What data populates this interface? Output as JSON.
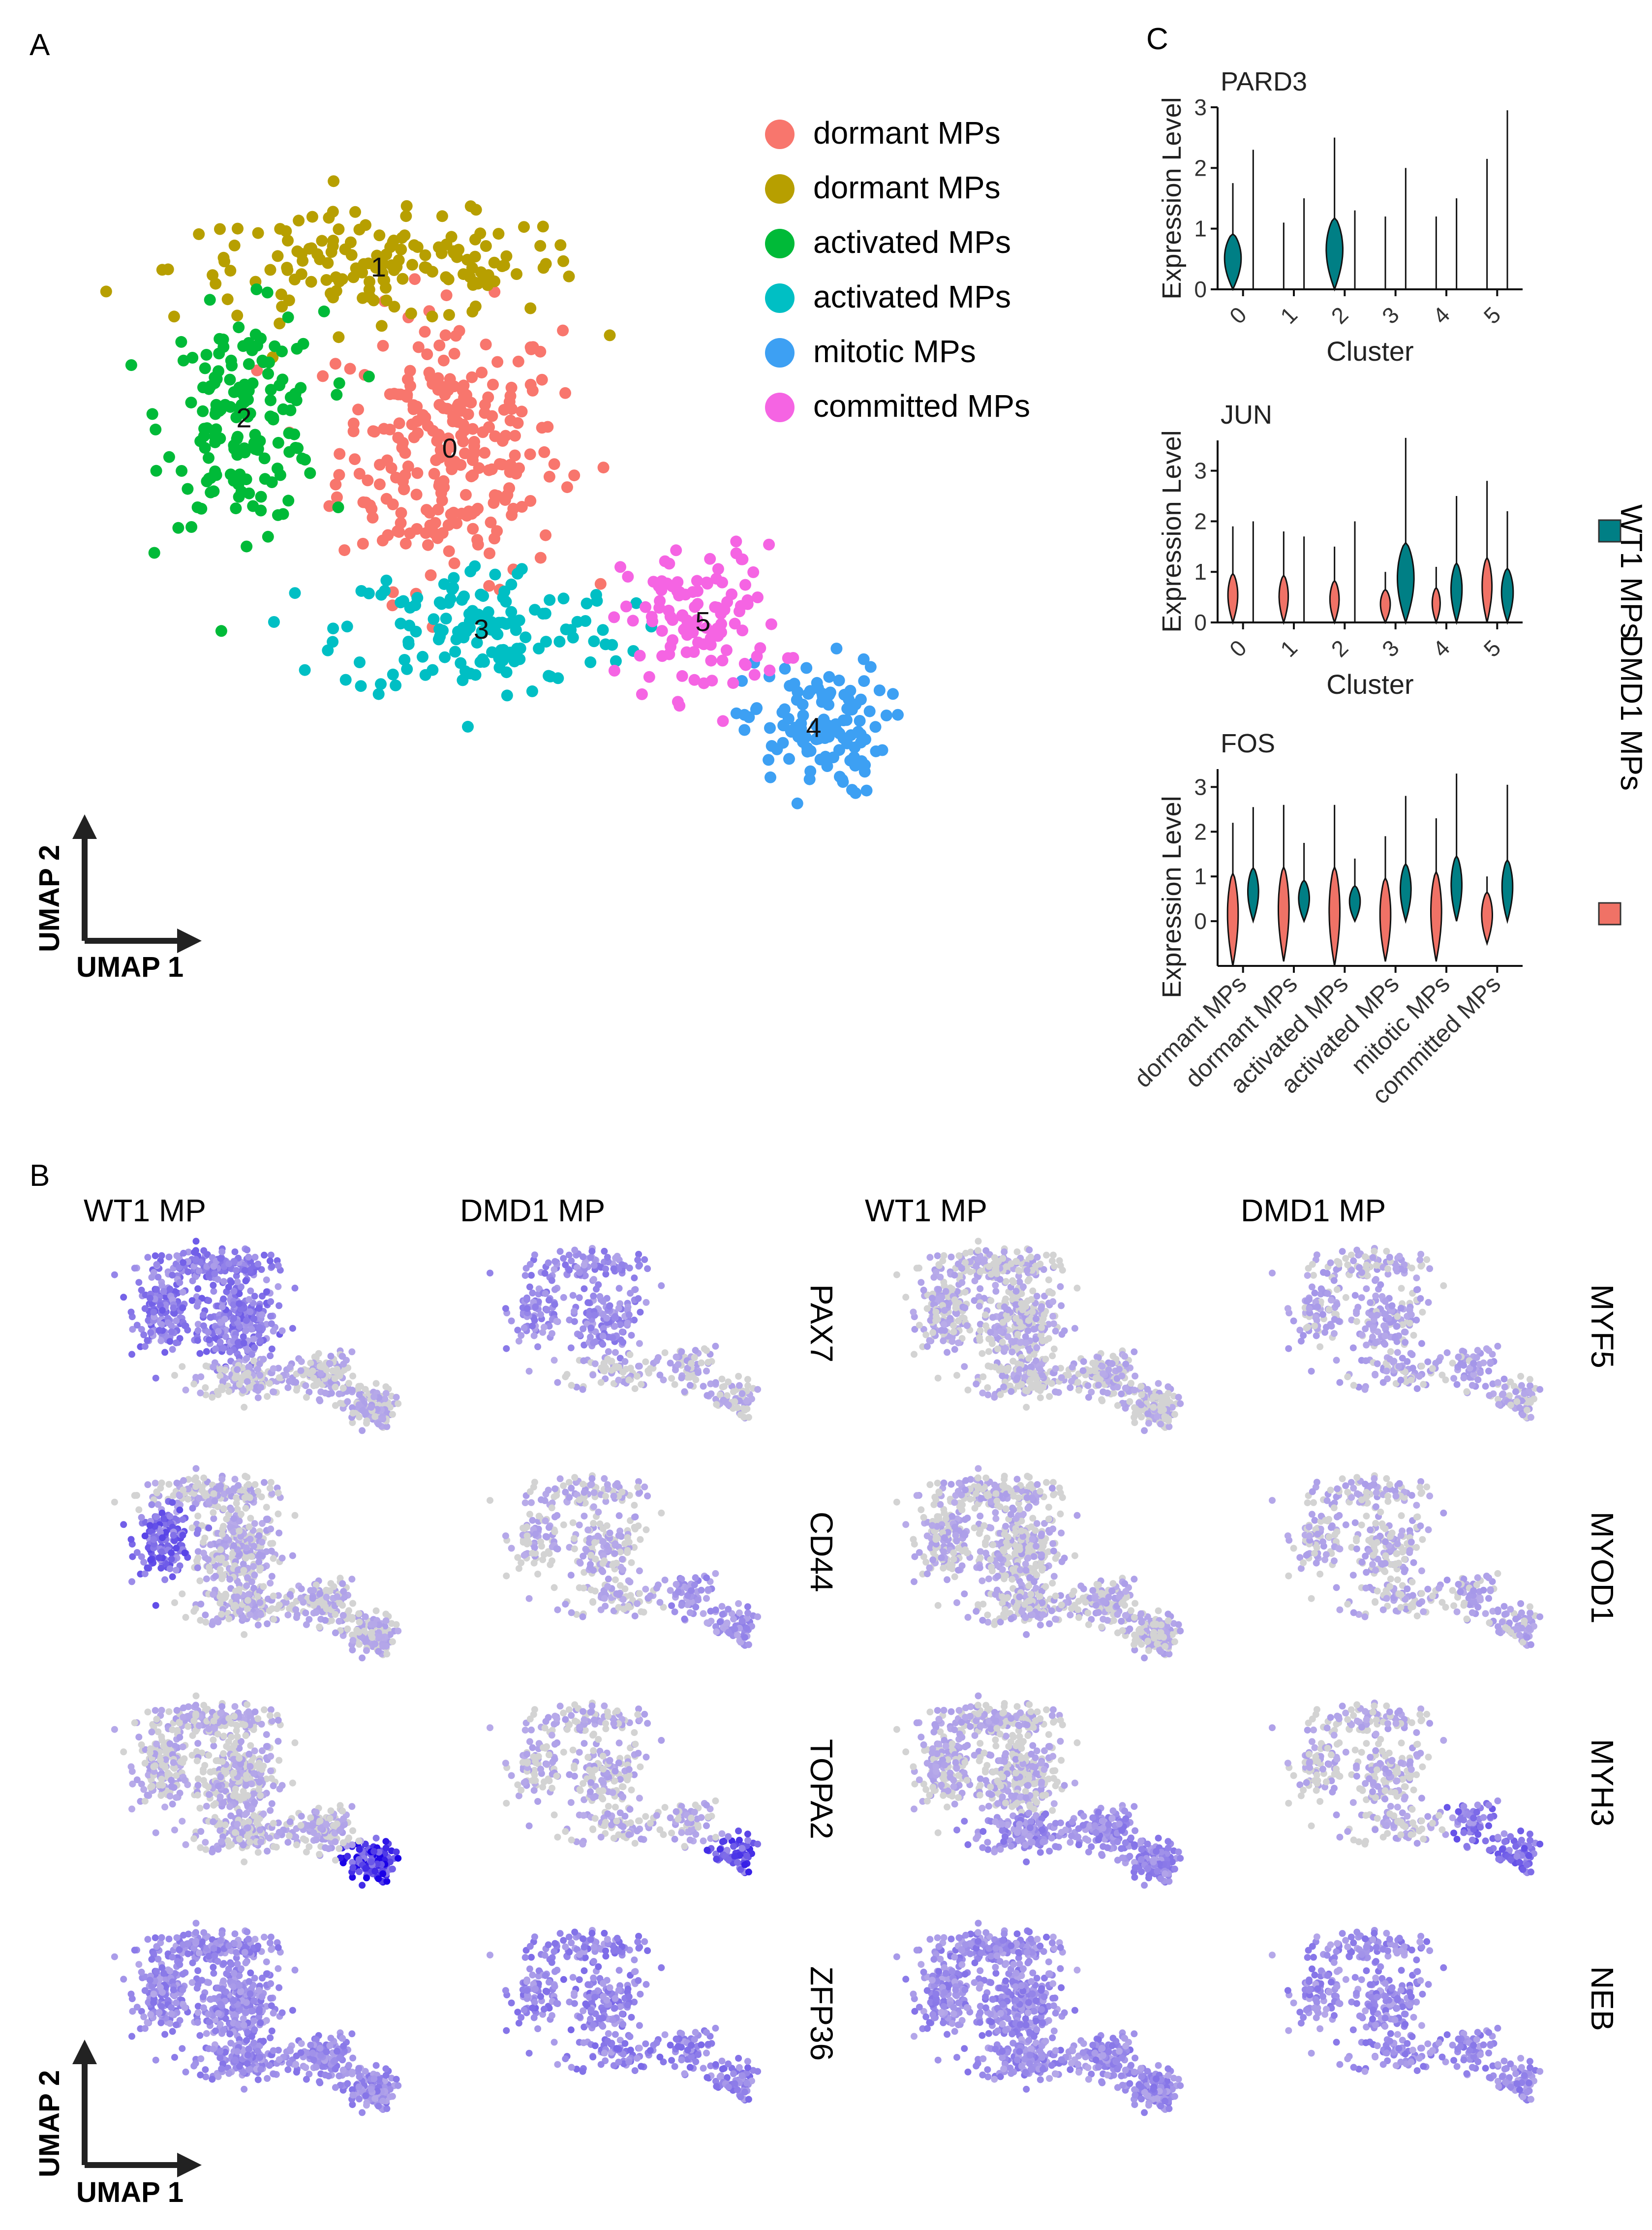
{
  "panel_labels": {
    "a": "A",
    "b": "B",
    "c": "C"
  },
  "legend": {
    "umap": [
      {
        "label": "dormant MPs",
        "color": "#F8766D"
      },
      {
        "label": "dormant MPs",
        "color": "#B79F00"
      },
      {
        "label": "activated MPs",
        "color": "#00BA38"
      },
      {
        "label": "activated MPs",
        "color": "#00BFC4"
      },
      {
        "label": "mitotic MPs",
        "color": "#3DA0F3"
      },
      {
        "label": "committed MPs",
        "color": "#F564E3"
      }
    ],
    "violin": [
      {
        "label": "WT1 MPs",
        "color": "#007F85"
      },
      {
        "label": "DMD1 MPs",
        "color": "#F07266"
      }
    ]
  },
  "axis_labels": {
    "umap1": "UMAP 1",
    "umap2": "UMAP 2"
  },
  "feature_plots": {
    "column_headers": [
      "WT1 MP",
      "DMD1 MP",
      "WT1 MP",
      "DMD1 MP"
    ],
    "genes_left": [
      "PAX7",
      "CD44",
      "TOPA2",
      "ZFP36"
    ],
    "genes_right": [
      "MYF5",
      "MYOD1",
      "MYH3",
      "NEB"
    ],
    "low_color": "#D3D3D3",
    "high_color": "#0000FF"
  },
  "chart_data": [
    {
      "type": "scatter",
      "title": "",
      "xlabel": "UMAP 1",
      "ylabel": "UMAP 2",
      "cluster_labels": [
        "0",
        "1",
        "2",
        "3",
        "4",
        "5"
      ],
      "clusters": [
        {
          "id": "0",
          "name": "dormant MPs",
          "center": [
            0.0,
            0.4
          ],
          "spread": [
            1.4,
            1.8
          ],
          "n": 260,
          "color": "#F8766D"
        },
        {
          "id": "1",
          "name": "dormant MPs",
          "center": [
            -0.9,
            2.8
          ],
          "spread": [
            2.6,
            0.7
          ],
          "n": 160,
          "color": "#B79F00"
        },
        {
          "id": "2",
          "name": "activated MPs",
          "center": [
            -2.6,
            0.8
          ],
          "spread": [
            1.0,
            1.4
          ],
          "n": 160,
          "color": "#00BA38"
        },
        {
          "id": "3",
          "name": "activated MPs",
          "center": [
            0.4,
            -2.0
          ],
          "spread": [
            1.8,
            0.9
          ],
          "n": 150,
          "color": "#00BFC4"
        },
        {
          "id": "4",
          "name": "mitotic MPs",
          "center": [
            4.6,
            -3.3
          ],
          "spread": [
            0.9,
            0.9
          ],
          "n": 120,
          "color": "#3DA0F3"
        },
        {
          "id": "5",
          "name": "committed MPs",
          "center": [
            3.2,
            -1.9
          ],
          "spread": [
            1.0,
            1.0
          ],
          "n": 110,
          "color": "#F564E3"
        }
      ]
    },
    {
      "type": "violin",
      "title": "PARD3",
      "xlabel": "Cluster",
      "ylabel": "Expression Level",
      "categories": [
        "0",
        "1",
        "2",
        "3",
        "4",
        "5"
      ],
      "ylim": [
        0,
        3
      ],
      "yticks": [
        "0",
        "1",
        "2",
        "3"
      ],
      "series": [
        {
          "name": "WT1 MPs",
          "color": "#007F85",
          "max": [
            1.75,
            0,
            2.5,
            0,
            0,
            0
          ],
          "shape": [
            0.9,
            0,
            0.9,
            0,
            0,
            0
          ]
        },
        {
          "name": "DMD1 MPs",
          "color": "#F07266",
          "max": [
            0,
            0,
            0,
            0,
            0,
            0
          ],
          "shape": [
            0,
            0,
            0,
            0,
            0,
            0
          ]
        }
      ],
      "extra_max": [
        2.3,
        1.5,
        1.3,
        2.0,
        1.5,
        2.95
      ],
      "extra_max2": [
        0,
        1.1,
        0,
        1.2,
        1.2,
        2.15
      ]
    },
    {
      "type": "violin",
      "title": "JUN",
      "xlabel": "Cluster",
      "ylabel": "Expression Level",
      "categories": [
        "0",
        "1",
        "2",
        "3",
        "4",
        "5"
      ],
      "ylim": [
        0,
        3.6
      ],
      "yticks": [
        "0",
        "1",
        "2",
        "3"
      ],
      "series": [
        {
          "name": "DMD1 MPs",
          "color": "#F07266",
          "max": [
            1.9,
            1.8,
            1.5,
            1.0,
            1.1,
            2.8
          ],
          "shape": [
            0.35,
            0.3,
            0.3,
            0.35,
            0.2,
            0.35
          ]
        },
        {
          "name": "WT1 MPs",
          "color": "#007F85",
          "max": [
            2.0,
            1.7,
            2.0,
            3.65,
            2.5,
            2.2
          ],
          "shape": [
            0,
            0,
            0,
            0.9,
            0.45,
            0.5
          ]
        }
      ]
    },
    {
      "type": "violin",
      "title": "FOS",
      "xlabel": "",
      "ylabel": "Expression Level",
      "categories": [
        "dormant MPs",
        "dormant MPs",
        "activated MPs",
        "activated MPs",
        "mitotic MPs",
        "committed MPs"
      ],
      "ylim": [
        -1,
        3.4
      ],
      "yticks": [
        "0",
        "1",
        "2",
        "3"
      ],
      "series": [
        {
          "name": "DMD1 MPs",
          "color": "#F07266",
          "max": [
            2.2,
            2.6,
            2.6,
            1.9,
            2.3,
            1.0
          ],
          "min": [
            -1.0,
            -0.9,
            -1.0,
            -0.9,
            -0.9,
            -0.5
          ]
        },
        {
          "name": "WT1 MPs",
          "color": "#007F85",
          "max": [
            2.55,
            1.75,
            1.4,
            2.8,
            3.3,
            3.05
          ],
          "min": [
            0,
            0,
            0,
            0,
            0,
            0
          ]
        }
      ]
    }
  ]
}
